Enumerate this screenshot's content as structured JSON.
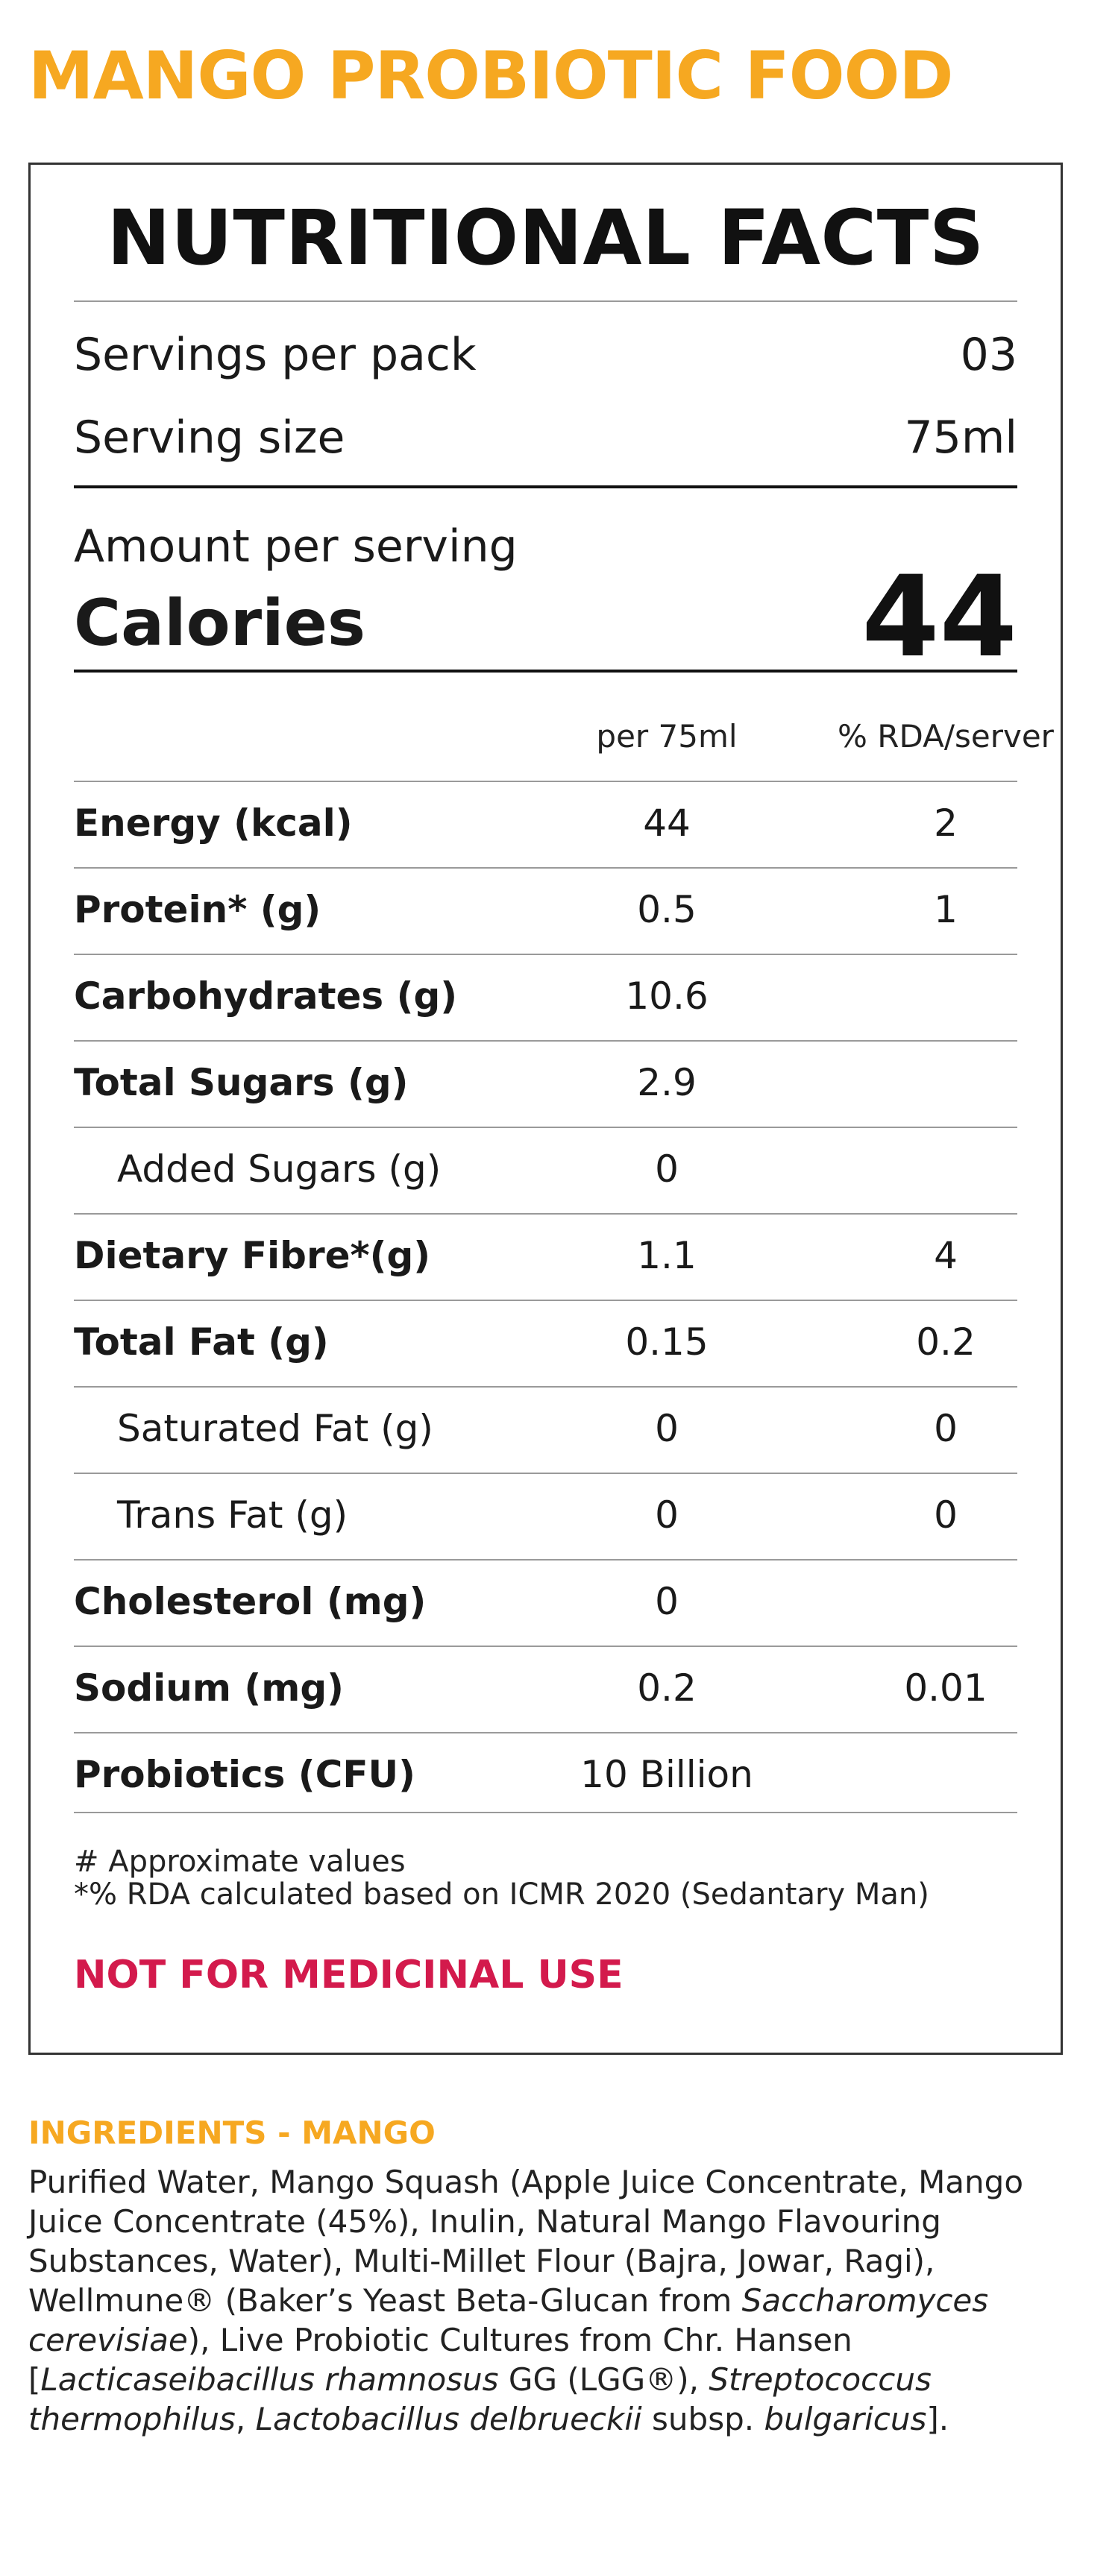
{
  "product_title": "MANGO PROBIOTIC FOOD",
  "panel": {
    "heading": "NUTRITIONAL FACTS",
    "servings_per_pack_label": "Servings per pack",
    "servings_per_pack_value": "03",
    "serving_size_label": "Serving size",
    "serving_size_value": "75ml",
    "amount_per_serving_label": "Amount per serving",
    "calories_label": "Calories",
    "calories_value": "44",
    "columns": {
      "per": "per 75ml",
      "rda": "% RDA/server"
    },
    "rows": [
      {
        "label": "Energy (kcal)",
        "per": "44",
        "rda": "2",
        "sub": false
      },
      {
        "label": "Protein* (g)",
        "per": "0.5",
        "rda": "1",
        "sub": false
      },
      {
        "label": "Carbohydrates (g)",
        "per": "10.6",
        "rda": "",
        "sub": false
      },
      {
        "label": "Total Sugars (g)",
        "per": "2.9",
        "rda": "",
        "sub": false
      },
      {
        "label": "Added Sugars (g)",
        "per": "0",
        "rda": "",
        "sub": true
      },
      {
        "label": "Dietary Fibre*(g)",
        "per": "1.1",
        "rda": "4",
        "sub": false
      },
      {
        "label": "Total Fat (g)",
        "per": "0.15",
        "rda": "0.2",
        "sub": false
      },
      {
        "label": "Saturated Fat (g)",
        "per": "0",
        "rda": "0",
        "sub": true
      },
      {
        "label": "Trans Fat (g)",
        "per": "0",
        "rda": "0",
        "sub": true
      },
      {
        "label": "Cholesterol (mg)",
        "per": "0",
        "rda": "",
        "sub": false
      },
      {
        "label": "Sodium (mg)",
        "per": "0.2",
        "rda": "0.01",
        "sub": false
      },
      {
        "label": "Probiotics (CFU)",
        "per": "10 Billion",
        "rda": "",
        "sub": false
      }
    ],
    "note_1": "# Approximate values",
    "note_2": "*% RDA calculated based on ICMR 2020 (Sedantary Man)",
    "warning": "NOT FOR MEDICINAL USE"
  },
  "ingredients": {
    "heading": "INGREDIENTS - MANGO",
    "part_1": "Purified Water, Mango Squash (Apple Juice Concentrate, Mango Juice Concentrate (45%), Inulin, Natural Mango Flavouring Substances, Water), Multi-Millet Flour (Bajra, Jowar, Ragi), Wellmune® (Baker’s Yeast Beta-Glucan from ",
    "italic_1": "Saccharomyces cerevisiae",
    "part_2": "), Live Probiotic Cultures from Chr. Hansen [",
    "italic_2": "Lacticaseibacillus rhamnosus",
    "part_3": " GG (LGG®), ",
    "italic_3": "Streptococcus thermophilus",
    "part_4": ", ",
    "italic_4": "Lactobacillus delbrueckii",
    "part_5": " subsp. ",
    "italic_5": "bulgaricus",
    "part_6": "]."
  },
  "colors": {
    "title": "#f6a821",
    "warning": "#d31a4c",
    "border": "#333333"
  }
}
